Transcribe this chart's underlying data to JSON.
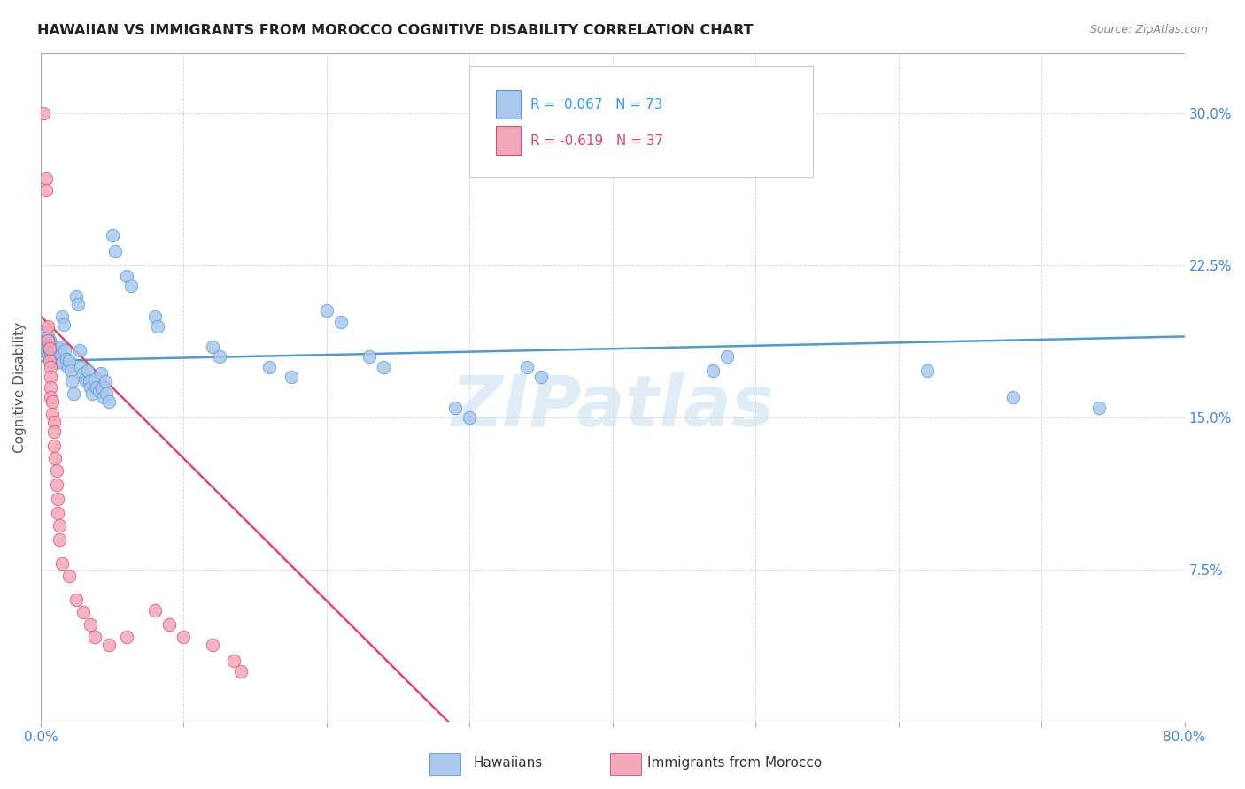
{
  "title": "HAWAIIAN VS IMMIGRANTS FROM MOROCCO COGNITIVE DISABILITY CORRELATION CHART",
  "source": "Source: ZipAtlas.com",
  "ylabel": "Cognitive Disability",
  "yticks": [
    "7.5%",
    "15.0%",
    "22.5%",
    "30.0%"
  ],
  "ytick_vals": [
    0.075,
    0.15,
    0.225,
    0.3
  ],
  "xlim": [
    0.0,
    0.8
  ],
  "ylim": [
    0.0,
    0.33
  ],
  "watermark": "ZIPatlas",
  "hawaiian_color": "#aac8ee",
  "morocco_color": "#f2a8b8",
  "trendline_hawaiian_color": "#5599cc",
  "trendline_morocco_color": "#dd4477",
  "background_color": "#ffffff",
  "grid_color": "#cccccc",
  "hawaiian_scatter": [
    [
      0.003,
      0.188
    ],
    [
      0.004,
      0.192
    ],
    [
      0.004,
      0.185
    ],
    [
      0.005,
      0.19
    ],
    [
      0.005,
      0.185
    ],
    [
      0.005,
      0.181
    ],
    [
      0.006,
      0.188
    ],
    [
      0.006,
      0.183
    ],
    [
      0.006,
      0.179
    ],
    [
      0.007,
      0.187
    ],
    [
      0.007,
      0.182
    ],
    [
      0.007,
      0.186
    ],
    [
      0.008,
      0.183
    ],
    [
      0.008,
      0.179
    ],
    [
      0.008,
      0.185
    ],
    [
      0.009,
      0.184
    ],
    [
      0.009,
      0.18
    ],
    [
      0.009,
      0.177
    ],
    [
      0.01,
      0.185
    ],
    [
      0.01,
      0.181
    ],
    [
      0.01,
      0.178
    ],
    [
      0.011,
      0.182
    ],
    [
      0.011,
      0.179
    ],
    [
      0.012,
      0.183
    ],
    [
      0.012,
      0.18
    ],
    [
      0.013,
      0.184
    ],
    [
      0.013,
      0.178
    ],
    [
      0.014,
      0.185
    ],
    [
      0.014,
      0.181
    ],
    [
      0.015,
      0.177
    ],
    [
      0.015,
      0.2
    ],
    [
      0.016,
      0.196
    ],
    [
      0.017,
      0.183
    ],
    [
      0.018,
      0.179
    ],
    [
      0.019,
      0.175
    ],
    [
      0.02,
      0.178
    ],
    [
      0.021,
      0.173
    ],
    [
      0.022,
      0.168
    ],
    [
      0.023,
      0.162
    ],
    [
      0.025,
      0.21
    ],
    [
      0.026,
      0.206
    ],
    [
      0.027,
      0.183
    ],
    [
      0.028,
      0.175
    ],
    [
      0.03,
      0.172
    ],
    [
      0.031,
      0.169
    ],
    [
      0.032,
      0.168
    ],
    [
      0.033,
      0.173
    ],
    [
      0.034,
      0.168
    ],
    [
      0.035,
      0.165
    ],
    [
      0.036,
      0.162
    ],
    [
      0.038,
      0.169
    ],
    [
      0.039,
      0.165
    ],
    [
      0.041,
      0.163
    ],
    [
      0.042,
      0.172
    ],
    [
      0.043,
      0.165
    ],
    [
      0.044,
      0.16
    ],
    [
      0.045,
      0.168
    ],
    [
      0.046,
      0.162
    ],
    [
      0.048,
      0.158
    ],
    [
      0.05,
      0.24
    ],
    [
      0.052,
      0.232
    ],
    [
      0.06,
      0.22
    ],
    [
      0.063,
      0.215
    ],
    [
      0.08,
      0.2
    ],
    [
      0.082,
      0.195
    ],
    [
      0.12,
      0.185
    ],
    [
      0.125,
      0.18
    ],
    [
      0.16,
      0.175
    ],
    [
      0.175,
      0.17
    ],
    [
      0.2,
      0.203
    ],
    [
      0.21,
      0.197
    ],
    [
      0.23,
      0.18
    ],
    [
      0.24,
      0.175
    ],
    [
      0.29,
      0.155
    ],
    [
      0.3,
      0.15
    ],
    [
      0.34,
      0.175
    ],
    [
      0.35,
      0.17
    ],
    [
      0.47,
      0.173
    ],
    [
      0.48,
      0.18
    ],
    [
      0.62,
      0.173
    ],
    [
      0.68,
      0.16
    ],
    [
      0.74,
      0.155
    ]
  ],
  "morocco_scatter": [
    [
      0.002,
      0.3
    ],
    [
      0.004,
      0.268
    ],
    [
      0.004,
      0.262
    ],
    [
      0.005,
      0.195
    ],
    [
      0.005,
      0.188
    ],
    [
      0.006,
      0.184
    ],
    [
      0.006,
      0.178
    ],
    [
      0.007,
      0.175
    ],
    [
      0.007,
      0.17
    ],
    [
      0.007,
      0.165
    ],
    [
      0.007,
      0.16
    ],
    [
      0.008,
      0.158
    ],
    [
      0.008,
      0.152
    ],
    [
      0.009,
      0.148
    ],
    [
      0.009,
      0.143
    ],
    [
      0.009,
      0.136
    ],
    [
      0.01,
      0.13
    ],
    [
      0.011,
      0.124
    ],
    [
      0.011,
      0.117
    ],
    [
      0.012,
      0.11
    ],
    [
      0.012,
      0.103
    ],
    [
      0.013,
      0.097
    ],
    [
      0.013,
      0.09
    ],
    [
      0.015,
      0.078
    ],
    [
      0.02,
      0.072
    ],
    [
      0.025,
      0.06
    ],
    [
      0.03,
      0.054
    ],
    [
      0.035,
      0.048
    ],
    [
      0.038,
      0.042
    ],
    [
      0.048,
      0.038
    ],
    [
      0.06,
      0.042
    ],
    [
      0.08,
      0.055
    ],
    [
      0.09,
      0.048
    ],
    [
      0.1,
      0.042
    ],
    [
      0.12,
      0.038
    ],
    [
      0.135,
      0.03
    ],
    [
      0.14,
      0.025
    ]
  ],
  "hawaiian_trend_x": [
    0.0,
    0.8
  ],
  "hawaiian_trend_y": [
    0.178,
    0.19
  ],
  "morocco_trend_x": [
    0.0,
    0.285
  ],
  "morocco_trend_y": [
    0.2,
    0.0
  ]
}
